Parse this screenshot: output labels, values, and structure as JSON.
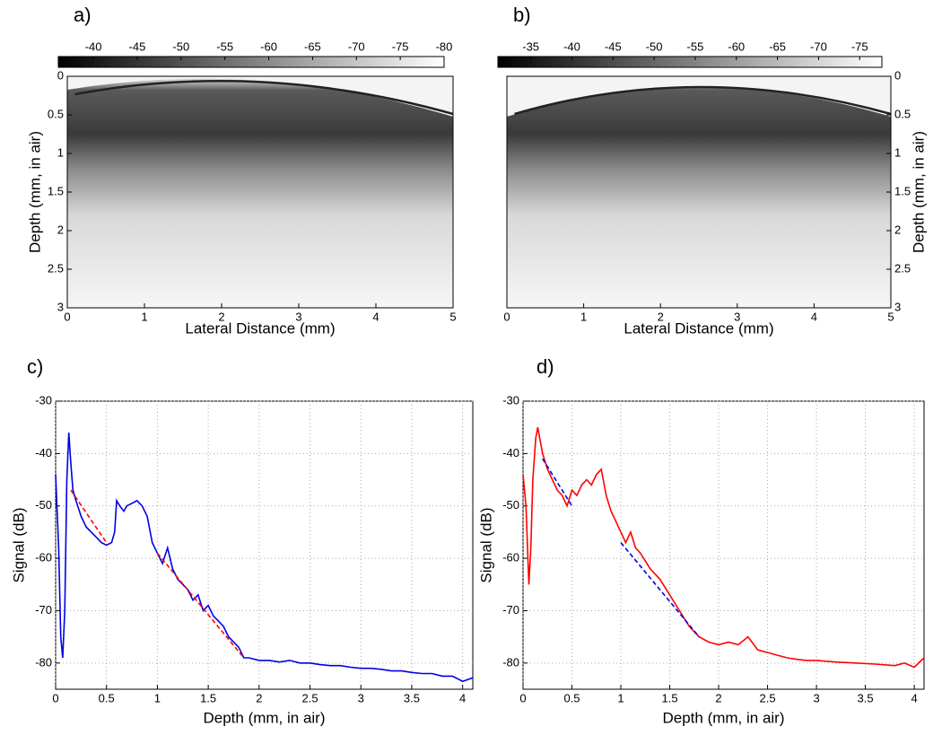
{
  "chart_data": [
    {
      "type": "image",
      "panel_label": "a)",
      "xlabel": "Lateral Distance (mm)",
      "ylabel": "Depth (mm, in air)",
      "xlim": [
        0,
        5
      ],
      "xticks": [
        0,
        1,
        2,
        3,
        4,
        5
      ],
      "ylim": [
        3,
        0
      ],
      "yticks": [
        0,
        0.5,
        1,
        1.5,
        2,
        2.5,
        3
      ],
      "yaxis_side": "left",
      "colorbar": {
        "clim": [
          -36,
          -80
        ],
        "ticks": [
          -40,
          -45,
          -50,
          -55,
          -60,
          -65,
          -70,
          -75,
          -80
        ]
      }
    },
    {
      "type": "image",
      "panel_label": "b)",
      "xlabel": "Lateral Distance (mm)",
      "ylabel": "Depth (mm, in air)",
      "xlim": [
        0,
        5
      ],
      "xticks": [
        0,
        1,
        2,
        3,
        4,
        5
      ],
      "ylim": [
        3,
        0
      ],
      "yticks": [
        0,
        0.5,
        1,
        1.5,
        2,
        2.5,
        3
      ],
      "yaxis_side": "right",
      "colorbar": {
        "clim": [
          -31,
          -77.7
        ],
        "ticks": [
          -35,
          -40,
          -45,
          -50,
          -55,
          -60,
          -65,
          -70,
          -75
        ]
      }
    },
    {
      "type": "line",
      "panel_label": "c)",
      "xlabel": "Depth (mm, in air)",
      "ylabel": "Signal (dB)",
      "xlim": [
        0,
        4.1
      ],
      "xticks": [
        0,
        0.5,
        1,
        1.5,
        2,
        2.5,
        3,
        3.5,
        4
      ],
      "ylim": [
        -85,
        -30
      ],
      "yticks": [
        -30,
        -40,
        -50,
        -60,
        -70,
        -80
      ],
      "grid": true,
      "series": [
        {
          "color": "#0000e6",
          "dashed": false,
          "x": [
            0,
            0.03,
            0.05,
            0.07,
            0.09,
            0.11,
            0.13,
            0.15,
            0.17,
            0.2,
            0.25,
            0.3,
            0.35,
            0.4,
            0.45,
            0.5,
            0.55,
            0.58,
            0.6,
            0.63,
            0.67,
            0.7,
            0.75,
            0.8,
            0.85,
            0.9,
            0.95,
            1.0,
            1.05,
            1.1,
            1.15,
            1.2,
            1.25,
            1.3,
            1.35,
            1.4,
            1.45,
            1.5,
            1.55,
            1.6,
            1.65,
            1.7,
            1.75,
            1.8,
            1.85,
            1.9,
            2.0,
            2.1,
            2.2,
            2.3,
            2.4,
            2.5,
            2.6,
            2.7,
            2.8,
            2.9,
            3.0,
            3.1,
            3.2,
            3.3,
            3.4,
            3.5,
            3.6,
            3.7,
            3.8,
            3.9,
            4.0,
            4.1
          ],
          "values": [
            -44,
            -58,
            -75,
            -79,
            -70,
            -45,
            -36,
            -42,
            -47,
            -49,
            -52,
            -54,
            -55,
            -56,
            -57,
            -57.5,
            -57,
            -55,
            -49,
            -50,
            -51,
            -50,
            -49.5,
            -49,
            -50,
            -52,
            -57,
            -59,
            -61,
            -58,
            -62,
            -64,
            -65,
            -66,
            -68,
            -67,
            -70,
            -69,
            -71,
            -72,
            -73,
            -75,
            -76,
            -77,
            -79,
            -79,
            -79.5,
            -79.5,
            -79.8,
            -79.5,
            -80,
            -80,
            -80.3,
            -80.5,
            -80.5,
            -80.8,
            -81,
            -81,
            -81.2,
            -81.5,
            -81.5,
            -81.8,
            -82,
            -82,
            -82.5,
            -82.5,
            -83.5,
            -82.8
          ]
        },
        {
          "color": "#ff0000",
          "dashed": true,
          "x": [
            0.15,
            0.5
          ],
          "values": [
            -47,
            -57
          ]
        },
        {
          "color": "#ff0000",
          "dashed": true,
          "x": [
            1.0,
            1.85
          ],
          "values": [
            -59,
            -79
          ]
        }
      ]
    },
    {
      "type": "line",
      "panel_label": "d)",
      "xlabel": "Depth (mm, in air)",
      "ylabel": "Signal (dB)",
      "xlim": [
        0,
        4.1
      ],
      "xticks": [
        0,
        0.5,
        1,
        1.5,
        2,
        2.5,
        3,
        3.5,
        4
      ],
      "ylim": [
        -85,
        -30
      ],
      "yticks": [
        -30,
        -40,
        -50,
        -60,
        -70,
        -80
      ],
      "grid": true,
      "series": [
        {
          "color": "#ff0000",
          "dashed": false,
          "x": [
            0,
            0.03,
            0.06,
            0.08,
            0.1,
            0.13,
            0.15,
            0.18,
            0.2,
            0.25,
            0.3,
            0.35,
            0.4,
            0.45,
            0.5,
            0.55,
            0.6,
            0.65,
            0.7,
            0.75,
            0.8,
            0.85,
            0.9,
            0.95,
            1.0,
            1.05,
            1.1,
            1.15,
            1.2,
            1.3,
            1.4,
            1.5,
            1.6,
            1.7,
            1.8,
            1.9,
            2.0,
            2.1,
            2.2,
            2.3,
            2.4,
            2.5,
            2.6,
            2.7,
            2.8,
            2.9,
            3.0,
            3.2,
            3.4,
            3.6,
            3.8,
            3.9,
            4.0,
            4.1
          ],
          "values": [
            -44,
            -50,
            -65,
            -58,
            -45,
            -37,
            -35,
            -38,
            -40,
            -43,
            -45,
            -47,
            -48,
            -50,
            -47,
            -48,
            -46,
            -45,
            -46,
            -44,
            -43,
            -48,
            -51,
            -53,
            -55,
            -57,
            -55,
            -58,
            -59,
            -62,
            -64,
            -67,
            -70,
            -73,
            -75,
            -76,
            -76.5,
            -76,
            -76.5,
            -75,
            -77.5,
            -78,
            -78.5,
            -79,
            -79.3,
            -79.5,
            -79.5,
            -79.8,
            -80,
            -80.2,
            -80.5,
            -80,
            -80.8,
            -79
          ]
        },
        {
          "color": "#0000e6",
          "dashed": true,
          "x": [
            0.2,
            0.5
          ],
          "values": [
            -41,
            -50
          ]
        },
        {
          "color": "#0000e6",
          "dashed": true,
          "x": [
            1.0,
            1.8
          ],
          "values": [
            -57,
            -75
          ]
        }
      ]
    }
  ]
}
